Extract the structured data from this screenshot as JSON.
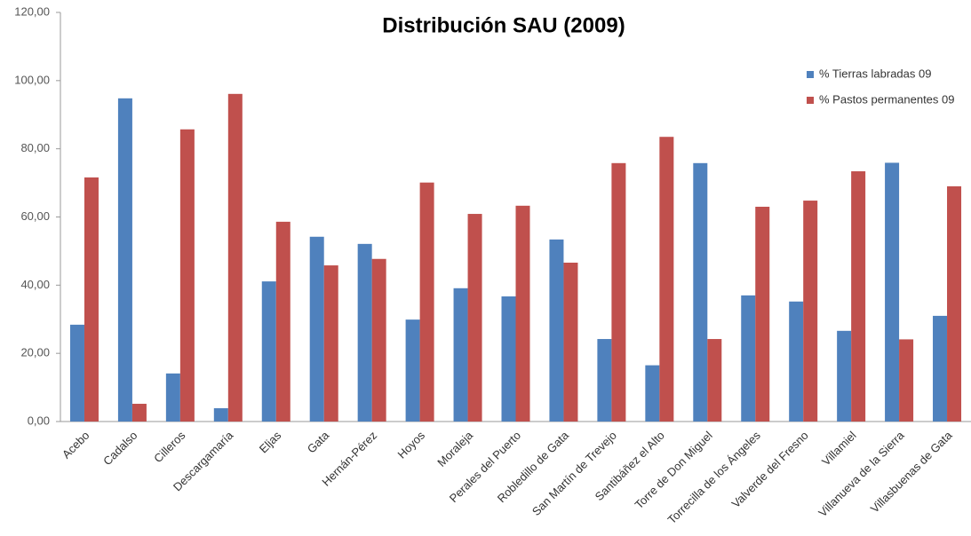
{
  "chart_data": {
    "type": "bar",
    "title": "Distribución SAU (2009)",
    "categories": [
      "Acebo",
      "Cadalso",
      "Cilleros",
      "Descargamaría",
      "Eljas",
      "Gata",
      "Hernán-Pérez",
      "Hoyos",
      "Moraleja",
      "Perales del Puerto",
      "Robledillo de Gata",
      "San Martín de Trevejo",
      "Santibáñez el Alto",
      "Torre de Don Miguel",
      "Torrecilla de los Ángeles",
      "Valverde del Fresno",
      "Villamiel",
      "Villanueva de la Sierra",
      "Villasbuenas de Gata"
    ],
    "series": [
      {
        "name": "% Tierras labradas 09",
        "color": "#4f81bd",
        "values": [
          28.4,
          94.8,
          14.1,
          3.9,
          41.1,
          54.2,
          52.1,
          29.9,
          39.1,
          36.7,
          53.4,
          24.2,
          16.5,
          75.8,
          37.0,
          35.2,
          26.6,
          75.9,
          31.0
        ]
      },
      {
        "name": "% Pastos permanentes 09",
        "color": "#c0504d",
        "values": [
          71.6,
          5.2,
          85.7,
          96.1,
          58.6,
          45.8,
          47.7,
          70.1,
          60.9,
          63.3,
          46.6,
          75.8,
          83.5,
          24.2,
          63.0,
          64.8,
          73.4,
          24.1,
          69.0
        ]
      }
    ],
    "ylim": [
      0,
      120
    ],
    "yticks": [
      {
        "value": 0,
        "label": "0,00"
      },
      {
        "value": 20,
        "label": "20,00"
      },
      {
        "value": 40,
        "label": "40,00"
      },
      {
        "value": 60,
        "label": "60,00"
      },
      {
        "value": 80,
        "label": "80,00"
      },
      {
        "value": 100,
        "label": "100,00"
      },
      {
        "value": 120,
        "label": "120,00"
      }
    ],
    "grid": false,
    "legend": "upper right"
  }
}
